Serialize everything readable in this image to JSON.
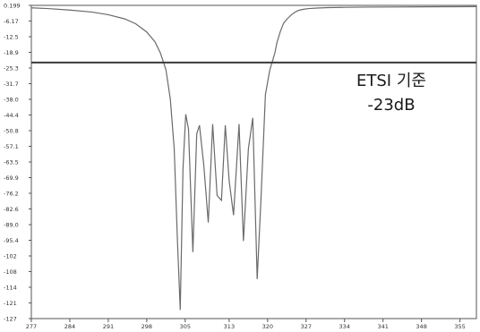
{
  "chart_data": {
    "type": "line",
    "title": "",
    "xlabel": "",
    "ylabel": "",
    "xlim": [
      277,
      358
    ],
    "ylim": [
      -127,
      0.199
    ],
    "y_ticks": [
      "0.199",
      "-6.17",
      "-12.5",
      "-18.9",
      "-25.3",
      "-31.7",
      "-38.0",
      "-44.4",
      "-50.8",
      "-57.1",
      "-63.5",
      "-69.9",
      "-76.2",
      "-82.6",
      "-89.0",
      "-95.4",
      "-102",
      "-108",
      "-114",
      "-121",
      "-127"
    ],
    "x_ticks": [
      "277",
      "284",
      "291",
      "298",
      "305",
      "313",
      "320",
      "327",
      "334",
      "341",
      "348",
      "355"
    ],
    "x_tick_values": [
      277,
      284,
      291,
      298,
      305,
      313,
      320,
      327,
      334,
      341,
      348,
      355
    ],
    "grid": false,
    "series": [
      {
        "color": "#6a6a6a",
        "x": [
          277,
          280,
          284,
          288,
          291,
          294,
          296,
          298,
          299.5,
          300.5,
          301.5,
          302.3,
          303,
          303.6,
          304.1,
          304.6,
          305.1,
          305.6,
          306.4,
          307.1,
          307.6,
          308.4,
          309.2,
          310.0,
          310.8,
          311.6,
          312.3,
          313.0,
          313.8,
          314.8,
          315.6,
          316.5,
          317.3,
          318.1,
          318.8,
          319.6,
          320.4,
          321.3,
          321.7,
          322.3,
          322.9,
          323.6,
          324.4,
          325.1,
          325.7,
          326.5,
          327.5,
          329,
          331,
          334,
          338,
          343,
          348,
          353,
          358
        ],
        "y": [
          -0.8,
          -1.1,
          -1.7,
          -2.5,
          -3.6,
          -5.3,
          -7.3,
          -10.6,
          -14.6,
          -19.2,
          -26.0,
          -38.0,
          -58.0,
          -96.0,
          -123.5,
          -66.0,
          -44.0,
          -50.0,
          -100.0,
          -52.0,
          -48.5,
          -65.0,
          -88.0,
          -48.0,
          -77.0,
          -79.0,
          -48.5,
          -71.0,
          -85.0,
          -48.0,
          -95.5,
          -58.0,
          -45.5,
          -111.0,
          -78.0,
          -36.0,
          -26.0,
          -19.3,
          -14.9,
          -10.5,
          -7.1,
          -5.2,
          -3.5,
          -2.4,
          -1.8,
          -1.4,
          -1.1,
          -0.9,
          -0.7,
          -0.6,
          -0.5,
          -0.45,
          -0.4,
          -0.35,
          -0.3
        ]
      }
    ],
    "reference_line": {
      "y": -23,
      "color": "#3a3a3a"
    },
    "annotations": [
      "ETSI 기준",
      "-23dB"
    ]
  }
}
